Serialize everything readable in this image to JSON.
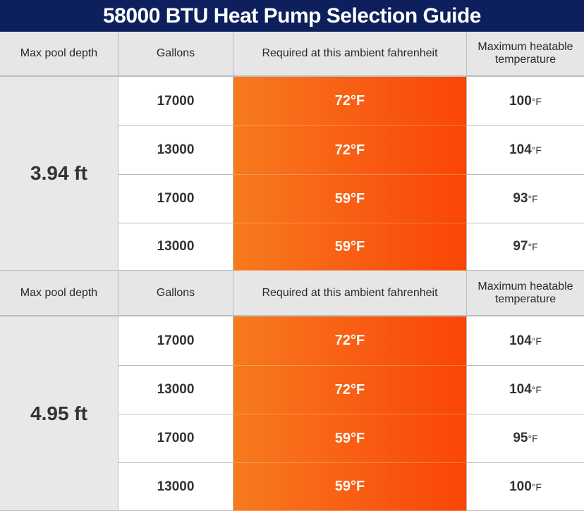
{
  "title": "58000 BTU Heat Pump Selection Guide",
  "headers": {
    "depth": "Max pool depth",
    "gallons": "Gallons",
    "ambient": "Required at this ambient fahrenheit",
    "max_temp": "Maximum heatable temperature"
  },
  "sections": [
    {
      "depth": "3.94 ft",
      "rows": [
        {
          "gallons": "17000",
          "ambient": "72°F",
          "max_value": "100",
          "max_unit": "°F"
        },
        {
          "gallons": "13000",
          "ambient": "72°F",
          "max_value": "104",
          "max_unit": "°F"
        },
        {
          "gallons": "17000",
          "ambient": "59°F",
          "max_value": "93",
          "max_unit": "°F"
        },
        {
          "gallons": "13000",
          "ambient": "59°F",
          "max_value": "97",
          "max_unit": "°F"
        }
      ]
    },
    {
      "depth": "4.95 ft",
      "rows": [
        {
          "gallons": "17000",
          "ambient": "72°F",
          "max_value": "104",
          "max_unit": "°F"
        },
        {
          "gallons": "13000",
          "ambient": "72°F",
          "max_value": "104",
          "max_unit": "°F"
        },
        {
          "gallons": "17000",
          "ambient": "59°F",
          "max_value": "95",
          "max_unit": "°F"
        },
        {
          "gallons": "13000",
          "ambient": "59°F",
          "max_value": "100",
          "max_unit": "°F"
        }
      ]
    }
  ],
  "colors": {
    "title_bg": "#0d1f5c",
    "header_bg": "#e6e6e6",
    "ambient_gradient_start": "#f77a1e",
    "ambient_gradient_end": "#fa4506"
  }
}
